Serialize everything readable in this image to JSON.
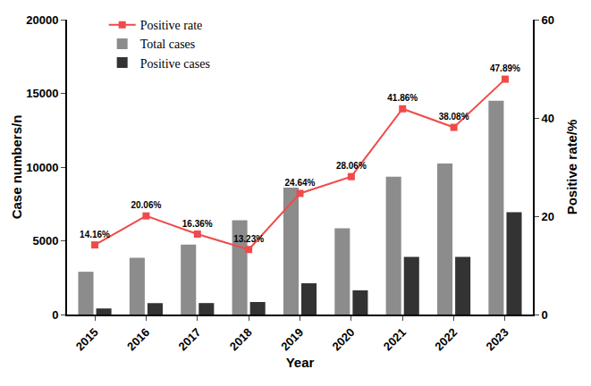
{
  "chart_data": {
    "type": "bar",
    "x_label": "Year",
    "y_label": "Case numbers/n",
    "y2_label": "Positive rate/%",
    "categories": [
      "2015",
      "2016",
      "2017",
      "2018",
      "2019",
      "2020",
      "2021",
      "2022",
      "2023"
    ],
    "series": [
      {
        "name": "Positive rate",
        "type": "line",
        "axis": "y2",
        "color": "#f04a4a",
        "marker": "square",
        "data_labels": true,
        "values": [
          14.16,
          20.06,
          16.36,
          13.23,
          24.64,
          28.06,
          41.86,
          38.08,
          47.89
        ],
        "value_labels": [
          "14.16%",
          "20.06%",
          "16.36%",
          "13.23%",
          "24.64%",
          "28.06%",
          "41.86%",
          "38.08%",
          "47.89%"
        ]
      },
      {
        "name": "Total cases",
        "type": "bar",
        "color": "#8c8c8c",
        "values": [
          2900,
          3850,
          4750,
          6400,
          8600,
          5850,
          9350,
          10250,
          14500
        ]
      },
      {
        "name": "Positive cases",
        "type": "bar",
        "color": "#333333",
        "values": [
          411,
          772,
          777,
          847,
          2119,
          1642,
          3914,
          3903,
          6944
        ]
      }
    ],
    "ylim": [
      0,
      20000
    ],
    "yticks": [
      0,
      5000,
      10000,
      15000,
      20000
    ],
    "y2lim": [
      0,
      60
    ],
    "y2ticks": [
      0,
      20,
      40,
      60
    ],
    "grid": false,
    "legend": "upper left"
  }
}
